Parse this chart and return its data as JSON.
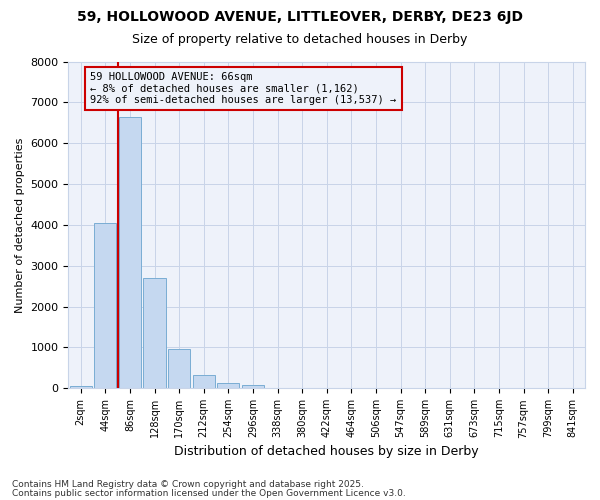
{
  "title1": "59, HOLLOWOOD AVENUE, LITTLEOVER, DERBY, DE23 6JD",
  "title2": "Size of property relative to detached houses in Derby",
  "xlabel": "Distribution of detached houses by size in Derby",
  "ylabel": "Number of detached properties",
  "categories": [
    "2sqm",
    "44sqm",
    "86sqm",
    "128sqm",
    "170sqm",
    "212sqm",
    "254sqm",
    "296sqm",
    "338sqm",
    "380sqm",
    "422sqm",
    "464sqm",
    "506sqm",
    "547sqm",
    "589sqm",
    "631sqm",
    "673sqm",
    "715sqm",
    "757sqm",
    "799sqm",
    "841sqm"
  ],
  "values": [
    65,
    4050,
    6650,
    2700,
    975,
    320,
    120,
    80,
    0,
    0,
    0,
    0,
    0,
    0,
    0,
    0,
    0,
    0,
    0,
    0,
    0
  ],
  "bar_color": "#c5d8f0",
  "bar_edge_color": "#7aadd4",
  "grid_color": "#c8d4e8",
  "background_color": "#ffffff",
  "plot_bg_color": "#eef2fa",
  "vline_color": "#cc0000",
  "vline_x": 1.5,
  "annotation_line1": "59 HOLLOWOOD AVENUE: 66sqm",
  "annotation_line2": "← 8% of detached houses are smaller (1,162)",
  "annotation_line3": "92% of semi-detached houses are larger (13,537) →",
  "annotation_box_color": "#cc0000",
  "footer1": "Contains HM Land Registry data © Crown copyright and database right 2025.",
  "footer2": "Contains public sector information licensed under the Open Government Licence v3.0.",
  "ylim": [
    0,
    8000
  ],
  "yticks": [
    0,
    1000,
    2000,
    3000,
    4000,
    5000,
    6000,
    7000,
    8000
  ]
}
